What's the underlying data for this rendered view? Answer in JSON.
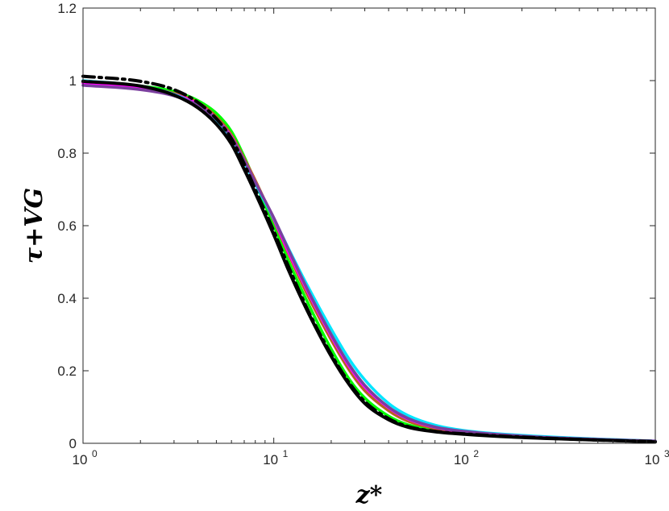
{
  "chart_data": {
    "type": "line",
    "xscale": "log",
    "xlim": [
      1,
      1000
    ],
    "ylim": [
      0,
      1.2
    ],
    "xlabel": "z*",
    "ylabel": "τ+VG",
    "grid": false,
    "yticks": [
      "0",
      "0.2",
      "0.4",
      "0.6",
      "0.8",
      "1",
      "1.2"
    ],
    "xticks": [
      {
        "base": "10",
        "exp": "0"
      },
      {
        "base": "10",
        "exp": "1"
      },
      {
        "base": "10",
        "exp": "2"
      },
      {
        "base": "10",
        "exp": "3"
      }
    ],
    "series": [
      {
        "color": "#00ff00",
        "style": "solid",
        "points": [
          [
            1,
            0.995
          ],
          [
            2,
            0.985
          ],
          [
            3,
            0.97
          ],
          [
            4,
            0.945
          ],
          [
            5,
            0.91
          ],
          [
            6,
            0.86
          ],
          [
            7,
            0.79
          ],
          [
            8,
            0.72
          ],
          [
            10,
            0.6
          ],
          [
            12,
            0.5
          ],
          [
            15,
            0.39
          ],
          [
            20,
            0.26
          ],
          [
            25,
            0.175
          ],
          [
            30,
            0.125
          ],
          [
            40,
            0.075
          ],
          [
            50,
            0.052
          ],
          [
            70,
            0.036
          ],
          [
            100,
            0.028
          ],
          [
            200,
            0.018
          ],
          [
            500,
            0.01
          ],
          [
            1000,
            0.005
          ]
        ]
      },
      {
        "color": "#b5651d",
        "style": "solid",
        "points": [
          [
            1,
            0.995
          ],
          [
            2,
            0.982
          ],
          [
            3,
            0.965
          ],
          [
            4,
            0.94
          ],
          [
            5,
            0.9
          ],
          [
            6,
            0.85
          ],
          [
            7,
            0.785
          ],
          [
            8,
            0.725
          ],
          [
            10,
            0.615
          ],
          [
            12,
            0.52
          ],
          [
            15,
            0.41
          ],
          [
            20,
            0.285
          ],
          [
            25,
            0.2
          ],
          [
            30,
            0.145
          ],
          [
            40,
            0.09
          ],
          [
            50,
            0.062
          ],
          [
            70,
            0.041
          ],
          [
            100,
            0.03
          ],
          [
            200,
            0.019
          ],
          [
            500,
            0.01
          ],
          [
            1000,
            0.005
          ]
        ]
      },
      {
        "color": "#ff00ff",
        "style": "solid",
        "points": [
          [
            1,
            0.993
          ],
          [
            2,
            0.98
          ],
          [
            3,
            0.962
          ],
          [
            4,
            0.935
          ],
          [
            5,
            0.895
          ],
          [
            6,
            0.845
          ],
          [
            7,
            0.78
          ],
          [
            8,
            0.72
          ],
          [
            10,
            0.618
          ],
          [
            12,
            0.525
          ],
          [
            15,
            0.42
          ],
          [
            20,
            0.295
          ],
          [
            25,
            0.21
          ],
          [
            30,
            0.155
          ],
          [
            40,
            0.098
          ],
          [
            50,
            0.068
          ],
          [
            70,
            0.044
          ],
          [
            100,
            0.032
          ],
          [
            200,
            0.02
          ],
          [
            500,
            0.011
          ],
          [
            1000,
            0.006
          ]
        ]
      },
      {
        "color": "#00e5ff",
        "style": "solid",
        "points": [
          [
            1,
            1.0
          ],
          [
            2,
            0.985
          ],
          [
            3,
            0.962
          ],
          [
            4,
            0.93
          ],
          [
            5,
            0.89
          ],
          [
            6,
            0.84
          ],
          [
            7,
            0.775
          ],
          [
            8,
            0.715
          ],
          [
            10,
            0.62
          ],
          [
            12,
            0.535
          ],
          [
            15,
            0.435
          ],
          [
            20,
            0.315
          ],
          [
            25,
            0.23
          ],
          [
            30,
            0.175
          ],
          [
            40,
            0.11
          ],
          [
            50,
            0.078
          ],
          [
            70,
            0.05
          ],
          [
            100,
            0.035
          ],
          [
            200,
            0.022
          ],
          [
            500,
            0.012
          ],
          [
            1000,
            0.006
          ]
        ]
      },
      {
        "color": "#7b3f9e",
        "style": "solid",
        "points": [
          [
            1,
            0.987
          ],
          [
            2,
            0.975
          ],
          [
            3,
            0.958
          ],
          [
            4,
            0.932
          ],
          [
            5,
            0.893
          ],
          [
            6,
            0.843
          ],
          [
            7,
            0.78
          ],
          [
            8,
            0.72
          ],
          [
            10,
            0.622
          ],
          [
            12,
            0.532
          ],
          [
            15,
            0.425
          ],
          [
            20,
            0.3
          ],
          [
            25,
            0.215
          ],
          [
            30,
            0.16
          ],
          [
            40,
            0.1
          ],
          [
            50,
            0.07
          ],
          [
            70,
            0.045
          ],
          [
            100,
            0.033
          ],
          [
            200,
            0.02
          ],
          [
            500,
            0.011
          ],
          [
            1000,
            0.006
          ]
        ]
      },
      {
        "color": "#000000",
        "style": "solid",
        "points": [
          [
            1,
            0.998
          ],
          [
            2,
            0.985
          ],
          [
            3,
            0.96
          ],
          [
            4,
            0.925
          ],
          [
            5,
            0.88
          ],
          [
            6,
            0.825
          ],
          [
            7,
            0.755
          ],
          [
            8,
            0.69
          ],
          [
            10,
            0.575
          ],
          [
            12,
            0.475
          ],
          [
            15,
            0.365
          ],
          [
            20,
            0.24
          ],
          [
            25,
            0.16
          ],
          [
            30,
            0.11
          ],
          [
            40,
            0.065
          ],
          [
            50,
            0.045
          ],
          [
            70,
            0.032
          ],
          [
            100,
            0.025
          ],
          [
            200,
            0.016
          ],
          [
            500,
            0.009
          ],
          [
            1000,
            0.004
          ]
        ]
      },
      {
        "color": "#000000",
        "style": "dashdot",
        "points": [
          [
            1,
            1.012
          ],
          [
            2,
            0.998
          ],
          [
            3,
            0.975
          ],
          [
            4,
            0.94
          ],
          [
            5,
            0.895
          ],
          [
            6,
            0.84
          ],
          [
            7,
            0.77
          ],
          [
            8,
            0.7
          ],
          [
            10,
            0.585
          ],
          [
            12,
            0.485
          ],
          [
            15,
            0.37
          ],
          [
            20,
            0.245
          ],
          [
            25,
            0.165
          ],
          [
            30,
            0.115
          ],
          [
            40,
            0.068
          ],
          [
            50,
            0.047
          ],
          [
            70,
            0.033
          ],
          [
            100,
            0.026
          ],
          [
            200,
            0.017
          ],
          [
            500,
            0.009
          ],
          [
            1000,
            0.005
          ]
        ]
      }
    ]
  }
}
